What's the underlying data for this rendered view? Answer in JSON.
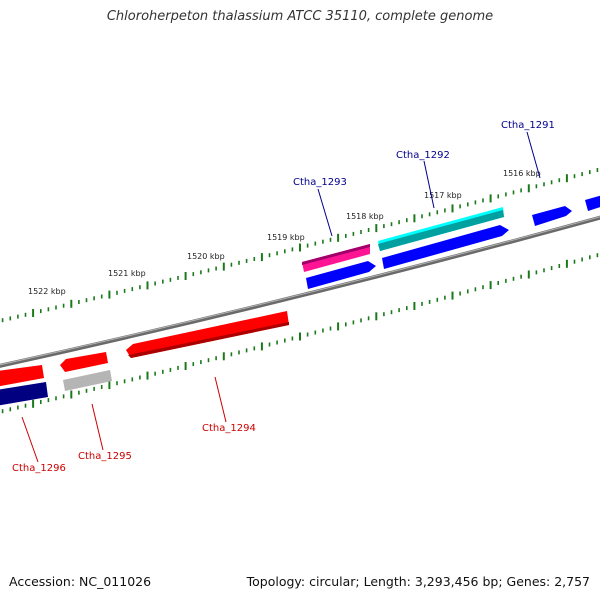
{
  "header": {
    "title": "Chloroherpeton thalassium ATCC 35110, complete genome"
  },
  "footer": {
    "accession": "Accession: NC_011026",
    "topology": "Topology: circular; Length: 3,293,456 bp; Genes: 2,757"
  },
  "scale": {
    "labels": [
      "1522 kbp",
      "1521 kbp",
      "1520 kbp",
      "1519 kbp",
      "1518 kbp",
      "1517 kbp",
      "1516 kbp"
    ]
  },
  "genes": {
    "forward_labels": [
      "Ctha_1293",
      "Ctha_1292",
      "Ctha_1291"
    ],
    "reverse_labels": [
      "Ctha_1294",
      "Ctha_1295",
      "Ctha_1296"
    ]
  },
  "colors": {
    "backbone": "#7f7f7f",
    "tick": "#1a7a1a",
    "forward_label": "#00008b",
    "reverse_label": "#cc0000",
    "gene_red": "#ff0000",
    "gene_blue": "#0000ff",
    "gene_navy": "#000080",
    "gene_cyan": "#00ffff",
    "gene_pink": "#ff1493",
    "gene_grey": "#b0b0b0"
  }
}
